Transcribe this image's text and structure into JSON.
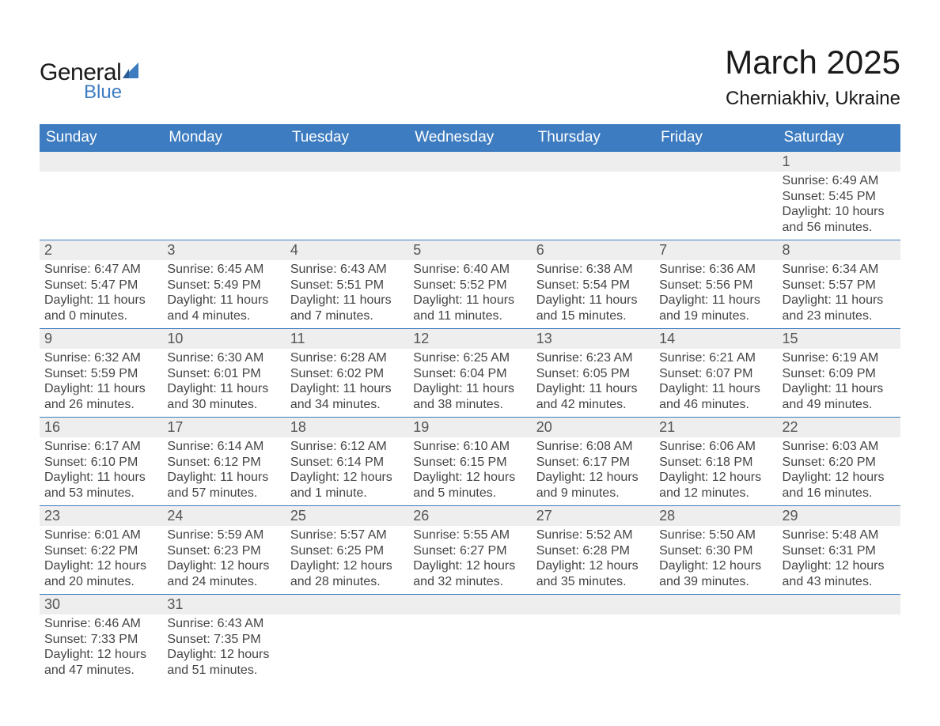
{
  "logo": {
    "text_general": "General",
    "text_blue": "Blue",
    "sail_color": "#3d7cc0"
  },
  "title": "March 2025",
  "location": "Cherniakhiv, Ukraine",
  "colors": {
    "header_bg": "#3d7cc0",
    "header_text": "#ffffff",
    "daynum_bg": "#eeeeee",
    "row_divider": "#3d7cc0",
    "body_text": "#444444",
    "daynum_text": "#555555",
    "page_bg": "#ffffff"
  },
  "typography": {
    "title_fontsize": 42,
    "location_fontsize": 24,
    "header_fontsize": 19,
    "daynum_fontsize": 18,
    "cell_fontsize": 16,
    "font_family": "Arial"
  },
  "day_headers": [
    "Sunday",
    "Monday",
    "Tuesday",
    "Wednesday",
    "Thursday",
    "Friday",
    "Saturday"
  ],
  "weeks": [
    [
      null,
      null,
      null,
      null,
      null,
      null,
      {
        "n": "1",
        "sr": "Sunrise: 6:49 AM",
        "ss": "Sunset: 5:45 PM",
        "dl": "Daylight: 10 hours and 56 minutes."
      }
    ],
    [
      {
        "n": "2",
        "sr": "Sunrise: 6:47 AM",
        "ss": "Sunset: 5:47 PM",
        "dl": "Daylight: 11 hours and 0 minutes."
      },
      {
        "n": "3",
        "sr": "Sunrise: 6:45 AM",
        "ss": "Sunset: 5:49 PM",
        "dl": "Daylight: 11 hours and 4 minutes."
      },
      {
        "n": "4",
        "sr": "Sunrise: 6:43 AM",
        "ss": "Sunset: 5:51 PM",
        "dl": "Daylight: 11 hours and 7 minutes."
      },
      {
        "n": "5",
        "sr": "Sunrise: 6:40 AM",
        "ss": "Sunset: 5:52 PM",
        "dl": "Daylight: 11 hours and 11 minutes."
      },
      {
        "n": "6",
        "sr": "Sunrise: 6:38 AM",
        "ss": "Sunset: 5:54 PM",
        "dl": "Daylight: 11 hours and 15 minutes."
      },
      {
        "n": "7",
        "sr": "Sunrise: 6:36 AM",
        "ss": "Sunset: 5:56 PM",
        "dl": "Daylight: 11 hours and 19 minutes."
      },
      {
        "n": "8",
        "sr": "Sunrise: 6:34 AM",
        "ss": "Sunset: 5:57 PM",
        "dl": "Daylight: 11 hours and 23 minutes."
      }
    ],
    [
      {
        "n": "9",
        "sr": "Sunrise: 6:32 AM",
        "ss": "Sunset: 5:59 PM",
        "dl": "Daylight: 11 hours and 26 minutes."
      },
      {
        "n": "10",
        "sr": "Sunrise: 6:30 AM",
        "ss": "Sunset: 6:01 PM",
        "dl": "Daylight: 11 hours and 30 minutes."
      },
      {
        "n": "11",
        "sr": "Sunrise: 6:28 AM",
        "ss": "Sunset: 6:02 PM",
        "dl": "Daylight: 11 hours and 34 minutes."
      },
      {
        "n": "12",
        "sr": "Sunrise: 6:25 AM",
        "ss": "Sunset: 6:04 PM",
        "dl": "Daylight: 11 hours and 38 minutes."
      },
      {
        "n": "13",
        "sr": "Sunrise: 6:23 AM",
        "ss": "Sunset: 6:05 PM",
        "dl": "Daylight: 11 hours and 42 minutes."
      },
      {
        "n": "14",
        "sr": "Sunrise: 6:21 AM",
        "ss": "Sunset: 6:07 PM",
        "dl": "Daylight: 11 hours and 46 minutes."
      },
      {
        "n": "15",
        "sr": "Sunrise: 6:19 AM",
        "ss": "Sunset: 6:09 PM",
        "dl": "Daylight: 11 hours and 49 minutes."
      }
    ],
    [
      {
        "n": "16",
        "sr": "Sunrise: 6:17 AM",
        "ss": "Sunset: 6:10 PM",
        "dl": "Daylight: 11 hours and 53 minutes."
      },
      {
        "n": "17",
        "sr": "Sunrise: 6:14 AM",
        "ss": "Sunset: 6:12 PM",
        "dl": "Daylight: 11 hours and 57 minutes."
      },
      {
        "n": "18",
        "sr": "Sunrise: 6:12 AM",
        "ss": "Sunset: 6:14 PM",
        "dl": "Daylight: 12 hours and 1 minute."
      },
      {
        "n": "19",
        "sr": "Sunrise: 6:10 AM",
        "ss": "Sunset: 6:15 PM",
        "dl": "Daylight: 12 hours and 5 minutes."
      },
      {
        "n": "20",
        "sr": "Sunrise: 6:08 AM",
        "ss": "Sunset: 6:17 PM",
        "dl": "Daylight: 12 hours and 9 minutes."
      },
      {
        "n": "21",
        "sr": "Sunrise: 6:06 AM",
        "ss": "Sunset: 6:18 PM",
        "dl": "Daylight: 12 hours and 12 minutes."
      },
      {
        "n": "22",
        "sr": "Sunrise: 6:03 AM",
        "ss": "Sunset: 6:20 PM",
        "dl": "Daylight: 12 hours and 16 minutes."
      }
    ],
    [
      {
        "n": "23",
        "sr": "Sunrise: 6:01 AM",
        "ss": "Sunset: 6:22 PM",
        "dl": "Daylight: 12 hours and 20 minutes."
      },
      {
        "n": "24",
        "sr": "Sunrise: 5:59 AM",
        "ss": "Sunset: 6:23 PM",
        "dl": "Daylight: 12 hours and 24 minutes."
      },
      {
        "n": "25",
        "sr": "Sunrise: 5:57 AM",
        "ss": "Sunset: 6:25 PM",
        "dl": "Daylight: 12 hours and 28 minutes."
      },
      {
        "n": "26",
        "sr": "Sunrise: 5:55 AM",
        "ss": "Sunset: 6:27 PM",
        "dl": "Daylight: 12 hours and 32 minutes."
      },
      {
        "n": "27",
        "sr": "Sunrise: 5:52 AM",
        "ss": "Sunset: 6:28 PM",
        "dl": "Daylight: 12 hours and 35 minutes."
      },
      {
        "n": "28",
        "sr": "Sunrise: 5:50 AM",
        "ss": "Sunset: 6:30 PM",
        "dl": "Daylight: 12 hours and 39 minutes."
      },
      {
        "n": "29",
        "sr": "Sunrise: 5:48 AM",
        "ss": "Sunset: 6:31 PM",
        "dl": "Daylight: 12 hours and 43 minutes."
      }
    ],
    [
      {
        "n": "30",
        "sr": "Sunrise: 6:46 AM",
        "ss": "Sunset: 7:33 PM",
        "dl": "Daylight: 12 hours and 47 minutes."
      },
      {
        "n": "31",
        "sr": "Sunrise: 6:43 AM",
        "ss": "Sunset: 7:35 PM",
        "dl": "Daylight: 12 hours and 51 minutes."
      },
      null,
      null,
      null,
      null,
      null
    ]
  ]
}
